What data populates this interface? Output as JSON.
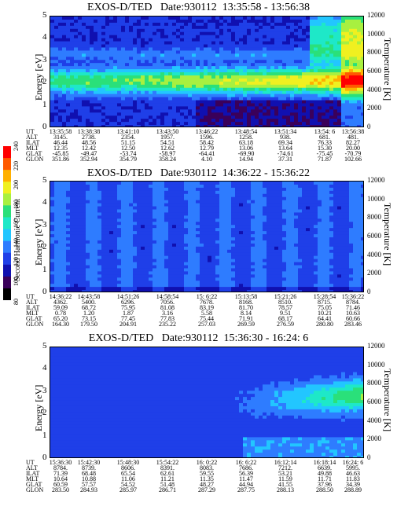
{
  "chart_data": [
    {
      "type": "heatmap",
      "title": "EXOS-D/TED   Date:930112  13:35:58 - 13:56:38",
      "ylabel": "Energy [eV]",
      "y2label": "Temperature [K]",
      "ylim": [
        0,
        5
      ],
      "y2lim": [
        0,
        12000
      ],
      "yticks": [
        "0",
        "1",
        "2",
        "3",
        "4",
        "5"
      ],
      "y2ticks": [
        "0",
        "2000",
        "4000",
        "6000",
        "8000",
        "10000",
        "12000"
      ],
      "table": {
        "labels": [
          "UT",
          "ALT",
          "ILAT",
          "MLT",
          "GLAT",
          "GLON"
        ],
        "columns": [
          [
            "13:35:58",
            "3145.",
            "46.44",
            "12.35",
            "-45.85",
            "351.86"
          ],
          [
            "13:38:38",
            "2738.",
            "48.56",
            "12.42",
            "-49.47",
            "352.94"
          ],
          [
            "13:41:10",
            "2354.",
            "51.15",
            "12.50",
            "-53.74",
            "354.79"
          ],
          [
            "13:43:50",
            "1957.",
            "54.51",
            "12.62",
            "-58.97",
            "358.24"
          ],
          [
            "13:46:22",
            "1596.",
            "58.42",
            "12.79",
            "-64.41",
            "4.10"
          ],
          [
            "13:48:54",
            "1258.",
            "63.18",
            "13.06",
            "-69.90",
            "14.94"
          ],
          [
            "13:51:34",
            "938.",
            "69.34",
            "13.64",
            "-74.61",
            "37.31"
          ],
          [
            "13:54: 6",
            "681.",
            "76.33",
            "15.30",
            "-75.45",
            "71.87"
          ],
          [
            "13:56:38",
            "481.",
            "82.27",
            "20.00",
            "-70.79",
            "102.66"
          ]
        ]
      }
    },
    {
      "type": "heatmap",
      "title": "EXOS-D/TED   Date:930112  14:36:22 - 15:36:22",
      "ylabel": "Energy [eV]",
      "y2label": "Temperature [K]",
      "ylim": [
        0,
        5
      ],
      "y2lim": [
        0,
        12000
      ],
      "yticks": [
        "0",
        "1",
        "2",
        "3",
        "4",
        "5"
      ],
      "y2ticks": [
        "0",
        "2000",
        "4000",
        "6000",
        "8000",
        "10000",
        "12000"
      ],
      "table": {
        "labels": [
          "UT",
          "ALT",
          "ILAT",
          "MLT",
          "GLAT",
          "GLON"
        ],
        "columns": [
          [
            "14:36:22",
            "4362.",
            "59.09",
            "0.78",
            "65.20",
            "164.30"
          ],
          [
            "14:43:58",
            "5400.",
            "68.72",
            "1.20",
            "73.15",
            "179.50"
          ],
          [
            "14:51:26",
            "6296.",
            "75.95",
            "1.87",
            "77.45",
            "204.91"
          ],
          [
            "14:58:54",
            "7056.",
            "81.08",
            "3.16",
            "77.83",
            "235.22"
          ],
          [
            "15: 6:22",
            "7678.",
            "83.19",
            "5.58",
            "75.44",
            "257.03"
          ],
          [
            "15:13:58",
            "8168.",
            "81.70",
            "8.14",
            "71.91",
            "269.59"
          ],
          [
            "15:21:26",
            "8510.",
            "78.57",
            "9.51",
            "68.17",
            "276.59"
          ],
          [
            "15:28:54",
            "8715.",
            "75.05",
            "10.21",
            "64.41",
            "280.80"
          ],
          [
            "15:36:22",
            "8784.",
            "71.46",
            "10.63",
            "60.66",
            "283.46"
          ]
        ]
      }
    },
    {
      "type": "heatmap",
      "title": "EXOS-D/TED   Date:930112  15:36:30 - 16:24: 6",
      "ylabel": "Energy [eV]",
      "y2label": "Temperature [K]",
      "ylim": [
        0,
        5
      ],
      "y2lim": [
        0,
        12000
      ],
      "yticks": [
        "0",
        "1",
        "2",
        "3",
        "4",
        "5"
      ],
      "y2ticks": [
        "0",
        "2000",
        "4000",
        "6000",
        "8000",
        "10000",
        "12000"
      ],
      "table": {
        "labels": [
          "UT",
          "ALT",
          "ILAT",
          "MLT",
          "GLAT",
          "GLON"
        ],
        "columns": [
          [
            "15:36:30",
            "8784.",
            "71.39",
            "10.64",
            "60.59",
            "283.50"
          ],
          [
            "15:42:30",
            "8739.",
            "68.48",
            "10.88",
            "57.57",
            "284.93"
          ],
          [
            "15:48:30",
            "8606.",
            "65.54",
            "11.06",
            "54.52",
            "285.97"
          ],
          [
            "15:54:22",
            "8391.",
            "62.61",
            "11.21",
            "51.48",
            "286.71"
          ],
          [
            "16: 0:22",
            "8083.",
            "59.55",
            "11.35",
            "48.27",
            "287.29"
          ],
          [
            "16: 6:22",
            "7686.",
            "56.39",
            "11.47",
            "44.94",
            "287.75"
          ],
          [
            "16:12:14",
            "7212.",
            "53.21",
            "11.59",
            "41.55",
            "288.13"
          ],
          [
            "16:18:14",
            "6639.",
            "49.88",
            "11.71",
            "37.96",
            "288.50"
          ],
          [
            "16:24: 6",
            "5995.",
            "46.63",
            "11.83",
            "34.39",
            "288.89"
          ]
        ]
      }
    }
  ],
  "colorbar": {
    "label": "Second Harmonic Current",
    "ticks": [
      "80",
      "100",
      "120",
      "140",
      "160",
      "180",
      "200",
      "220",
      "240"
    ],
    "colors": [
      "#000000",
      "#3a005a",
      "#1010b0",
      "#1f3fe8",
      "#2e7cff",
      "#22c6ff",
      "#1ee8c8",
      "#2ae07a",
      "#a8f040",
      "#f0f020",
      "#ffb000",
      "#ff5a00",
      "#ff0000"
    ]
  }
}
